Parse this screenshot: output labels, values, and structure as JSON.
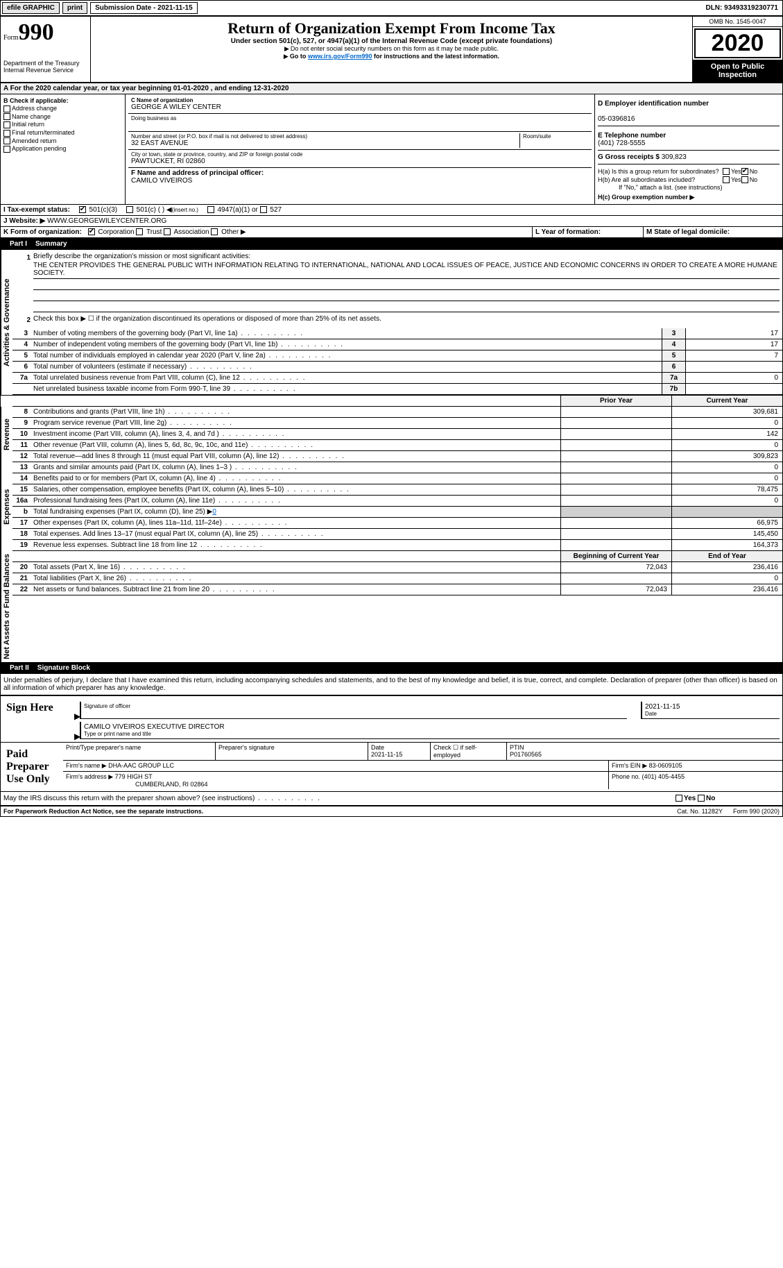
{
  "topbar": {
    "efile": "efile GRAPHIC",
    "print": "print",
    "submission": "Submission Date - 2021-11-15",
    "dln": "DLN: 93493319230771"
  },
  "header": {
    "form_label": "Form",
    "form_num": "990",
    "dept": "Department of the Treasury\nInternal Revenue Service",
    "title": "Return of Organization Exempt From Income Tax",
    "sub1": "Under section 501(c), 527, or 4947(a)(1) of the Internal Revenue Code (except private foundations)",
    "sub2": "Do not enter social security numbers on this form as it may be made public.",
    "sub3_a": "Go to ",
    "sub3_link": "www.irs.gov/Form990",
    "sub3_b": " for instructions and the latest information.",
    "omb": "OMB No. 1545-0047",
    "year": "2020",
    "open": "Open to Public Inspection"
  },
  "sectionA": "A For the 2020 calendar year, or tax year beginning 01-01-2020   , and ending 12-31-2020",
  "colB": {
    "heading": "B Check if applicable:",
    "items": [
      "Address change",
      "Name change",
      "Initial return",
      "Final return/terminated",
      "Amended return",
      "Application pending"
    ]
  },
  "colC": {
    "c_label": "C Name of organization",
    "c_name": "GEORGE A WILEY CENTER",
    "dba_label": "Doing business as",
    "dba": "",
    "addr_label": "Number and street (or P.O. box if mail is not delivered to street address)",
    "room_label": "Room/suite",
    "addr": "32 EAST AVENUE",
    "city_label": "City or town, state or province, country, and ZIP or foreign postal code",
    "city": "PAWTUCKET, RI  02860",
    "f_label": "F  Name and address of principal officer:",
    "f_name": "CAMILO VIVEIROS"
  },
  "colD": {
    "d_label": "D Employer identification number",
    "ein": "05-0396816",
    "e_label": "E Telephone number",
    "phone": "(401) 728-5555",
    "g_label": "G Gross receipts $ ",
    "g_val": "309,823"
  },
  "colH": {
    "ha": "H(a)  Is this a group return for subordinates?",
    "ha_yes": "Yes",
    "ha_no": "No",
    "hb": "H(b)  Are all subordinates included?",
    "hb_yes": "Yes",
    "hb_no": "No",
    "hb_note": "If \"No,\" attach a list. (see instructions)",
    "hc": "H(c)  Group exemption number ▶"
  },
  "rowI": {
    "label": "I   Tax-exempt status:",
    "opt1": "501(c)(3)",
    "opt2a": "501(c) (  ) ",
    "opt2b": "(insert no.)",
    "opt3": "4947(a)(1) or",
    "opt4": "527"
  },
  "rowJ": {
    "label": "J   Website: ▶",
    "val": " WWW.GEORGEWILEYCENTER.ORG"
  },
  "rowK": {
    "label": "K Form of organization:",
    "opts": [
      "Corporation",
      "Trust",
      "Association",
      "Other ▶"
    ],
    "l_label": "L Year of formation:",
    "l_val": "",
    "m_label": "M State of legal domicile:",
    "m_val": ""
  },
  "part1": {
    "num": "Part I",
    "title": "Summary"
  },
  "summary": {
    "s1_label": "1",
    "s1_desc": "Briefly describe the organization's mission or most significant activities:",
    "s1_text": "THE CENTER PROVIDES THE GENERAL PUBLIC WITH INFORMATION RELATING TO INTERNATIONAL, NATIONAL AND LOCAL ISSUES OF PEACE, JUSTICE AND ECONOMIC CONCERNS IN ORDER TO CREATE A MORE HUMANE SOCIETY.",
    "s2_desc": "Check this box ▶ ☐  if the organization discontinued its operations or disposed of more than 25% of its net assets.",
    "lines_a": [
      {
        "n": "3",
        "d": "Number of voting members of the governing body (Part VI, line 1a)",
        "box": "3",
        "v": "17"
      },
      {
        "n": "4",
        "d": "Number of independent voting members of the governing body (Part VI, line 1b)",
        "box": "4",
        "v": "17"
      },
      {
        "n": "5",
        "d": "Total number of individuals employed in calendar year 2020 (Part V, line 2a)",
        "box": "5",
        "v": "7"
      },
      {
        "n": "6",
        "d": "Total number of volunteers (estimate if necessary)",
        "box": "6",
        "v": ""
      },
      {
        "n": "7a",
        "d": "Total unrelated business revenue from Part VIII, column (C), line 12",
        "box": "7a",
        "v": "0"
      },
      {
        "n": "",
        "d": "Net unrelated business taxable income from Form 990-T, line 39",
        "box": "7b",
        "v": ""
      }
    ],
    "prior_hdr": "Prior Year",
    "current_hdr": "Current Year",
    "rev_lines": [
      {
        "n": "8",
        "d": "Contributions and grants (Part VIII, line 1h)",
        "p": "",
        "c": "309,681"
      },
      {
        "n": "9",
        "d": "Program service revenue (Part VIII, line 2g)",
        "p": "",
        "c": "0"
      },
      {
        "n": "10",
        "d": "Investment income (Part VIII, column (A), lines 3, 4, and 7d )",
        "p": "",
        "c": "142"
      },
      {
        "n": "11",
        "d": "Other revenue (Part VIII, column (A), lines 5, 6d, 8c, 9c, 10c, and 11e)",
        "p": "",
        "c": "0"
      },
      {
        "n": "12",
        "d": "Total revenue—add lines 8 through 11 (must equal Part VIII, column (A), line 12)",
        "p": "",
        "c": "309,823"
      }
    ],
    "exp_lines": [
      {
        "n": "13",
        "d": "Grants and similar amounts paid (Part IX, column (A), lines 1–3 )",
        "p": "",
        "c": "0"
      },
      {
        "n": "14",
        "d": "Benefits paid to or for members (Part IX, column (A), line 4)",
        "p": "",
        "c": "0"
      },
      {
        "n": "15",
        "d": "Salaries, other compensation, employee benefits (Part IX, column (A), lines 5–10)",
        "p": "",
        "c": "78,475"
      },
      {
        "n": "16a",
        "d": "Professional fundraising fees (Part IX, column (A), line 11e)",
        "p": "",
        "c": "0"
      },
      {
        "n": "b",
        "d": "Total fundraising expenses (Part IX, column (D), line 25) ▶",
        "p": "",
        "c": "",
        "shaded": true,
        "link_val": "0"
      },
      {
        "n": "17",
        "d": "Other expenses (Part IX, column (A), lines 11a–11d, 11f–24e)",
        "p": "",
        "c": "66,975"
      },
      {
        "n": "18",
        "d": "Total expenses. Add lines 13–17 (must equal Part IX, column (A), line 25)",
        "p": "",
        "c": "145,450"
      },
      {
        "n": "19",
        "d": "Revenue less expenses. Subtract line 18 from line 12",
        "p": "",
        "c": "164,373"
      }
    ],
    "net_hdr_beg": "Beginning of Current Year",
    "net_hdr_end": "End of Year",
    "net_lines": [
      {
        "n": "20",
        "d": "Total assets (Part X, line 16)",
        "p": "72,043",
        "c": "236,416"
      },
      {
        "n": "21",
        "d": "Total liabilities (Part X, line 26)",
        "p": "",
        "c": "0"
      },
      {
        "n": "22",
        "d": "Net assets or fund balances. Subtract line 21 from line 20",
        "p": "72,043",
        "c": "236,416"
      }
    ],
    "side_labels": {
      "gov": "Activities & Governance",
      "rev": "Revenue",
      "exp": "Expenses",
      "net": "Net Assets or Fund Balances"
    }
  },
  "part2": {
    "num": "Part II",
    "title": "Signature Block"
  },
  "sig": {
    "penalties": "Under penalties of perjury, I declare that I have examined this return, including accompanying schedules and statements, and to the best of my knowledge and belief, it is true, correct, and complete. Declaration of preparer (other than officer) is based on all information of which preparer has any knowledge.",
    "sign_here": "Sign Here",
    "officer_sig": "Signature of officer",
    "date": "Date",
    "sig_date": "2021-11-15",
    "officer_name": "CAMILO VIVEIROS  EXECUTIVE DIRECTOR",
    "officer_title_label": "Type or print name and title",
    "paid": "Paid Preparer Use Only",
    "prep_name_label": "Print/Type preparer's name",
    "prep_sig_label": "Preparer's signature",
    "prep_date_label": "Date",
    "prep_date": "2021-11-15",
    "prep_check_label": "Check ☐ if self-employed",
    "ptin_label": "PTIN",
    "ptin": "P01760565",
    "firm_name_label": "Firm's name   ▶ ",
    "firm_name": "DHA-AAC GROUP LLC",
    "firm_ein_label": "Firm's EIN ▶ ",
    "firm_ein": "83-0609105",
    "firm_addr_label": "Firm's address ▶ ",
    "firm_addr1": "779 HIGH ST",
    "firm_addr2": "CUMBERLAND, RI  02864",
    "firm_phone_label": "Phone no. ",
    "firm_phone": "(401) 405-4455",
    "discuss": "May the IRS discuss this return with the preparer shown above? (see instructions)",
    "discuss_yes": "Yes",
    "discuss_no": "No"
  },
  "footer": {
    "pra": "For Paperwork Reduction Act Notice, see the separate instructions.",
    "cat": "Cat. No. 11282Y",
    "form": "Form 990 (2020)"
  }
}
